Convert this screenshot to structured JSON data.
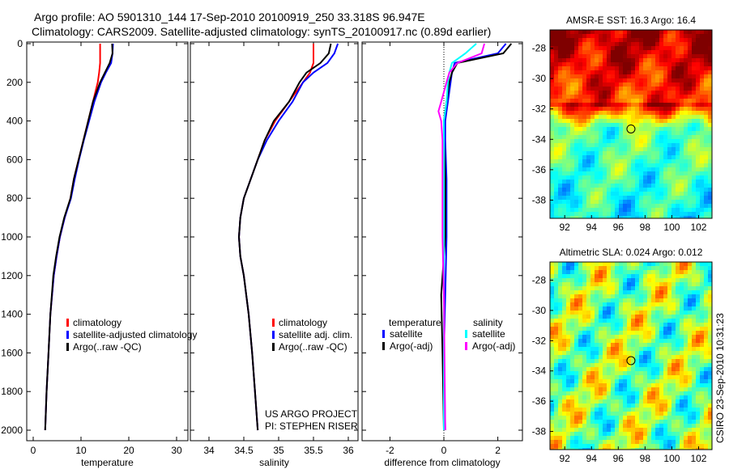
{
  "header": {
    "line1": "Argo profile: AO 5901310_144 17-Sep-2010 20100919_250 33.318S 96.947E",
    "line2": "Climatology: CARS2009. Satellite-adjusted climatology: synTS_20100917.nc (0.89d earlier)"
  },
  "credit": "CSIRO 23-Sep-2010 10:31:23",
  "colors": {
    "climatology": "#ff0000",
    "satellite": "#0000ff",
    "argo": "#000000",
    "sal_satellite": "#00ffff",
    "sal_argo": "#ff00ff"
  },
  "chart_data": [
    {
      "type": "line",
      "xlabel": "temperature",
      "xlim": [
        -2,
        32
      ],
      "ylim": [
        2000,
        0
      ],
      "xticks": [
        "0",
        "10",
        "20",
        "30"
      ],
      "yticks": [
        "0",
        "200",
        "400",
        "600",
        "800",
        "1000",
        "1200",
        "1400",
        "1600",
        "1800",
        "2000"
      ],
      "depth": [
        0,
        50,
        100,
        150,
        200,
        300,
        400,
        500,
        600,
        700,
        800,
        900,
        1000,
        1100,
        1200,
        1400,
        1600,
        1800,
        2000
      ],
      "series": [
        {
          "name": "climatology",
          "color": "#ff0000",
          "values": [
            14,
            14,
            14,
            13.8,
            13.5,
            12.5,
            11.5,
            10.5,
            9.5,
            8.5,
            7.8,
            6.6,
            5.6,
            4.9,
            4.3,
            3.6,
            3.2,
            2.8,
            2.5
          ]
        },
        {
          "name": "satellite-adjusted climatology",
          "color": "#0000ff",
          "values": [
            16.7,
            16.6,
            16.3,
            15.2,
            14.2,
            12.8,
            11.7,
            10.6,
            9.6,
            8.7,
            7.9,
            6.6,
            5.6,
            4.9,
            4.3,
            3.6,
            3.2,
            2.8,
            2.5
          ]
        },
        {
          "name": "Argo(..raw -QC)",
          "color": "#000000",
          "values": [
            16.5,
            16.6,
            16,
            15,
            14,
            12.5,
            11.5,
            10.5,
            9.5,
            8.5,
            7.8,
            6.5,
            5.5,
            4.8,
            4.2,
            3.6,
            3.2,
            2.8,
            2.5
          ]
        }
      ],
      "legend": [
        "climatology",
        "satellite-adjusted climatology",
        "Argo(..raw -QC)"
      ]
    },
    {
      "type": "line",
      "xlabel": "salinity",
      "xlim": [
        33.8,
        36.05
      ],
      "ylim": [
        2000,
        0
      ],
      "xticks": [
        "34",
        "34.5",
        "35",
        "35.5",
        "36"
      ],
      "depth": [
        0,
        50,
        100,
        150,
        200,
        300,
        400,
        500,
        600,
        700,
        800,
        900,
        1000,
        1100,
        1200,
        1400,
        1600,
        1800,
        2000
      ],
      "series": [
        {
          "name": "climatology",
          "color": "#ff0000",
          "values": [
            35.5,
            35.5,
            35.5,
            35.45,
            35.35,
            35.15,
            34.95,
            34.8,
            34.7,
            34.6,
            34.5,
            34.45,
            34.43,
            34.45,
            34.5,
            34.57,
            34.62,
            34.66,
            34.7
          ]
        },
        {
          "name": "satellite adj. clim.",
          "color": "#0000ff",
          "values": [
            35.85,
            35.8,
            35.7,
            35.5,
            35.35,
            35.2,
            35.0,
            34.83,
            34.7,
            34.6,
            34.5,
            34.45,
            34.43,
            34.45,
            34.5,
            34.57,
            34.62,
            34.66,
            34.7
          ]
        },
        {
          "name": "Argo(..raw -QC)",
          "color": "#000000",
          "values": [
            35.75,
            35.72,
            35.6,
            35.4,
            35.3,
            35.15,
            34.93,
            34.8,
            34.7,
            34.6,
            34.5,
            34.45,
            34.43,
            34.45,
            34.5,
            34.57,
            34.62,
            34.66,
            34.7
          ]
        }
      ],
      "legend": [
        "climatology",
        "satellite adj. clim.",
        "Argo(..raw -QC)"
      ],
      "annotation": [
        "US ARGO PROJECT",
        "PI: STEPHEN RISER"
      ]
    },
    {
      "type": "line",
      "xlabel": "difference from climatology",
      "xlim": [
        -3,
        3
      ],
      "ylim": [
        2000,
        0
      ],
      "xticks": [
        "-2",
        "0",
        "2"
      ],
      "depth": [
        0,
        50,
        100,
        150,
        200,
        300,
        350,
        400,
        500,
        700,
        1000,
        1300,
        1600,
        2000
      ],
      "series": [
        {
          "name": "temperature satellite",
          "color": "#0000ff",
          "values": [
            2.3,
            2.0,
            0.4,
            0.3,
            0.25,
            0.15,
            0.1,
            0.05,
            0.05,
            0.1,
            0.1,
            0.05,
            0,
            0.05
          ]
        },
        {
          "name": "temperature Argo(-adj)",
          "color": "#000000",
          "values": [
            2.5,
            2.2,
            0.5,
            0.3,
            0.2,
            0.1,
            0.05,
            0,
            0,
            0.05,
            0.05,
            -0.1,
            -0.05,
            0
          ]
        },
        {
          "name": "salinity satellite",
          "color": "#00ffff",
          "values": [
            1.2,
            0.8,
            0.3,
            0.2,
            0.15,
            0.1,
            0.05,
            0,
            0,
            0,
            0,
            0,
            0,
            0
          ]
        },
        {
          "name": "salinity Argo(-adj)",
          "color": "#ff00ff",
          "values": [
            1.5,
            1.4,
            0.5,
            0.2,
            0.1,
            -0.1,
            -0.2,
            -0.1,
            -0.05,
            -0.05,
            -0.05,
            0,
            0.02,
            0.05
          ]
        }
      ],
      "legend_headers": [
        "temperature",
        "salinity"
      ],
      "legend": [
        "satellite",
        "Argo(-adj)",
        "satellite",
        "Argo(-adj)"
      ]
    },
    {
      "type": "heatmap",
      "title": "AMSR-E SST: 16.3 Argo: 16.4",
      "xticks": [
        "92",
        "94",
        "96",
        "98",
        "100",
        "102"
      ],
      "yticks": [
        "-28",
        "-30",
        "-32",
        "-34",
        "-36",
        "-38"
      ],
      "xlim": [
        90.9,
        103
      ],
      "ylim": [
        -39.2,
        -26.8
      ],
      "marker": [
        96.947,
        -33.318
      ]
    },
    {
      "type": "heatmap",
      "title": "Altimetric SLA: 0.024 Argo: 0.012",
      "xticks": [
        "92",
        "94",
        "96",
        "98",
        "100",
        "102"
      ],
      "yticks": [
        "-28",
        "-30",
        "-32",
        "-34",
        "-36",
        "-38"
      ],
      "xlim": [
        90.9,
        103
      ],
      "ylim": [
        -39.2,
        -26.8
      ],
      "marker": [
        96.947,
        -33.318
      ]
    }
  ]
}
